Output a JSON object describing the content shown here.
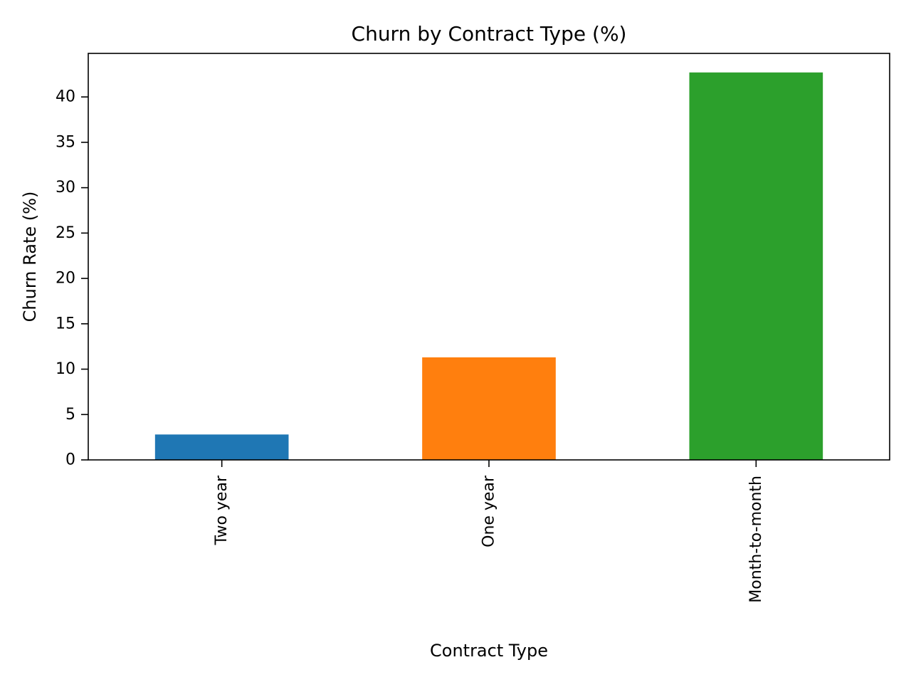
{
  "chart_data": {
    "type": "bar",
    "title": "Churn by Contract Type (%)",
    "xlabel": "Contract Type",
    "ylabel": "Churn Rate (%)",
    "categories": [
      "Two year",
      "One year",
      "Month-to-month"
    ],
    "values": [
      2.8,
      11.3,
      42.7
    ],
    "colors": [
      "#1f77b4",
      "#ff7f0e",
      "#2ca02c"
    ],
    "ylim": [
      0,
      44.8
    ],
    "yticks": [
      0,
      5,
      10,
      15,
      20,
      25,
      30,
      35,
      40
    ],
    "grid": false,
    "legend": "none"
  }
}
